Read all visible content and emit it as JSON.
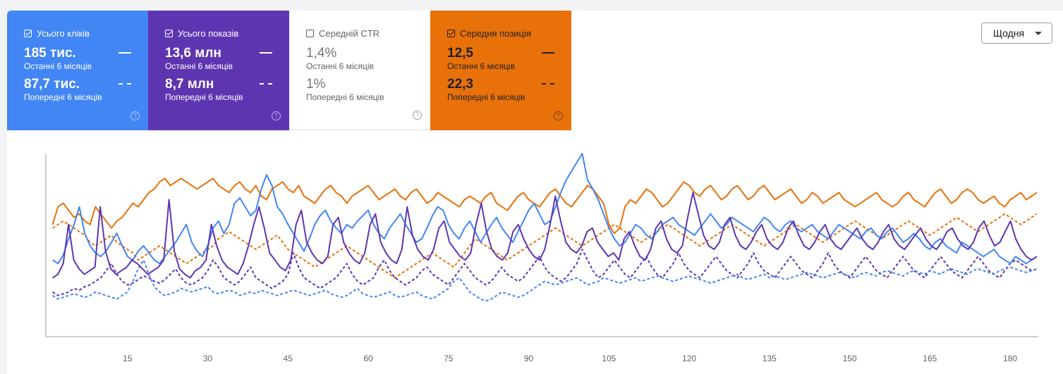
{
  "tiles": [
    {
      "label": "Усього кліків",
      "checked": true,
      "current_value": "185 тис.",
      "current_label": "Останні 6 місяців",
      "previous_value": "87,7 тис.",
      "previous_label": "Попередні 6 місяців",
      "color": "#4285f4"
    },
    {
      "label": "Усього показів",
      "checked": true,
      "current_value": "13,6 млн",
      "current_label": "Останні 6 місяців",
      "previous_value": "8,7 млн",
      "previous_label": "Попередні 6 місяців",
      "color": "#5e35b1"
    },
    {
      "label": "Середній CTR",
      "checked": false,
      "current_value": "1,4%",
      "current_label": "Останні 6 місяців",
      "previous_value": "1%",
      "previous_label": "Попередні 6 місяців",
      "color": "#ffffff"
    },
    {
      "label": "Середня позиція",
      "checked": true,
      "current_value": "12,5",
      "current_label": "Останні 6 місяців",
      "previous_value": "22,3",
      "previous_label": "Попередні 6 місяців",
      "color": "#e8710a"
    }
  ],
  "controls": {
    "granularity": "Щодня"
  },
  "chart_data": {
    "type": "line",
    "x_ticks": [
      15,
      30,
      45,
      60,
      75,
      90,
      105,
      120,
      135,
      150,
      165,
      180
    ],
    "xlim": [
      0,
      185
    ],
    "ylim": [
      0,
      100
    ],
    "y_axis_labels_shown": false,
    "grid": false,
    "series": [
      {
        "metric": "Усього кліків",
        "period": "Останні 6 місяців",
        "style": "solid",
        "color": "#4285f4",
        "values": [
          40,
          38,
          43,
          52,
          60,
          70,
          55,
          48,
          44,
          42,
          45,
          50,
          55,
          48,
          42,
          40,
          45,
          48,
          44,
          40,
          38,
          42,
          46,
          50,
          55,
          60,
          50,
          45,
          42,
          48,
          58,
          62,
          55,
          60,
          72,
          75,
          70,
          65,
          68,
          80,
          88,
          82,
          70,
          66,
          60,
          55,
          50,
          45,
          52,
          60,
          65,
          68,
          62,
          58,
          55,
          60,
          58,
          62,
          65,
          68,
          60,
          55,
          52,
          58,
          62,
          66,
          60,
          55,
          50,
          52,
          58,
          65,
          70,
          68,
          60,
          55,
          52,
          58,
          62,
          56,
          50,
          55,
          60,
          64,
          58,
          54,
          50,
          56,
          62,
          68,
          72,
          66,
          60,
          62,
          70,
          78,
          85,
          90,
          95,
          100,
          85,
          80,
          74,
          66,
          58,
          52,
          48,
          50,
          55,
          60,
          58,
          54,
          52,
          56,
          60,
          62,
          64,
          60,
          58,
          56,
          54,
          58,
          62,
          66,
          62,
          58,
          60,
          64,
          62,
          60,
          58,
          56,
          60,
          64,
          62,
          58,
          56,
          60,
          62,
          58,
          56,
          58,
          60,
          56,
          54,
          52,
          56,
          60,
          58,
          56,
          54,
          52,
          56,
          58,
          54,
          52,
          56,
          58,
          54,
          50,
          52,
          55,
          52,
          48,
          46,
          50,
          52,
          48,
          46,
          44,
          50,
          48,
          46,
          44,
          42,
          44,
          46,
          42,
          40,
          38,
          42,
          40,
          38,
          40,
          42
        ]
      },
      {
        "metric": "Усього кліків",
        "period": "Попередні 6 місяців",
        "style": "dashed",
        "color": "#4285f4",
        "values": [
          20,
          18,
          19,
          20,
          21,
          20,
          19,
          20,
          22,
          21,
          20,
          19,
          18,
          20,
          22,
          28,
          35,
          40,
          32,
          25,
          22,
          20,
          21,
          22,
          24,
          23,
          22,
          23,
          24,
          25,
          22,
          21,
          22,
          23,
          22,
          20,
          21,
          22,
          21,
          23,
          22,
          21,
          20,
          21,
          22,
          23,
          22,
          21,
          20,
          21,
          22,
          23,
          21,
          20,
          19,
          20,
          22,
          24,
          21,
          20,
          19,
          20,
          21,
          22,
          20,
          19,
          20,
          21,
          22,
          20,
          19,
          18,
          20,
          22,
          24,
          28,
          30,
          26,
          22,
          20,
          18,
          17,
          18,
          20,
          22,
          21,
          20,
          19,
          20,
          22,
          24,
          26,
          28,
          27,
          26,
          27,
          28,
          29,
          30,
          28,
          26,
          27,
          28,
          30,
          29,
          28,
          27,
          28,
          29,
          30,
          28,
          29,
          30,
          31,
          30,
          29,
          28,
          29,
          30,
          31,
          30,
          29,
          28,
          27,
          28,
          29,
          30,
          31,
          32,
          30,
          29,
          30,
          31,
          32,
          30,
          31,
          30,
          29,
          30,
          31,
          32,
          33,
          32,
          31,
          30,
          31,
          32,
          33,
          32,
          31,
          30,
          32,
          33,
          32,
          31,
          33,
          34,
          33,
          32,
          31,
          33,
          34,
          33,
          32,
          34,
          33,
          32,
          34,
          35,
          34,
          33,
          32,
          34,
          35,
          34,
          33,
          32,
          34,
          35,
          36,
          35,
          34,
          33,
          34,
          35
        ]
      },
      {
        "metric": "Усього показів",
        "period": "Останні 6 місяців",
        "style": "solid",
        "color": "#5e35b1",
        "values": [
          30,
          32,
          38,
          60,
          40,
          35,
          32,
          34,
          36,
          70,
          45,
          35,
          32,
          34,
          36,
          40,
          38,
          35,
          32,
          34,
          36,
          40,
          74,
          45,
          35,
          32,
          30,
          34,
          36,
          40,
          60,
          48,
          40,
          36,
          34,
          32,
          38,
          48,
          60,
          70,
          58,
          44,
          40,
          36,
          34,
          40,
          60,
          68,
          50,
          44,
          40,
          38,
          42,
          60,
          64,
          50,
          44,
          40,
          38,
          44,
          60,
          66,
          50,
          44,
          40,
          38,
          46,
          70,
          54,
          46,
          42,
          40,
          46,
          58,
          62,
          50,
          46,
          42,
          40,
          44,
          60,
          72,
          56,
          46,
          42,
          40,
          44,
          56,
          60,
          52,
          46,
          42,
          40,
          46,
          60,
          76,
          62,
          50,
          46,
          44,
          48,
          56,
          58,
          50,
          46,
          42,
          44,
          40,
          52,
          56,
          48,
          42,
          40,
          46,
          58,
          62,
          52,
          46,
          44,
          48,
          64,
          78,
          66,
          54,
          48,
          46,
          50,
          60,
          64,
          54,
          48,
          46,
          50,
          56,
          60,
          52,
          48,
          46,
          50,
          58,
          62,
          54,
          48,
          46,
          50,
          56,
          60,
          52,
          48,
          46,
          50,
          54,
          58,
          52,
          48,
          46,
          50,
          56,
          60,
          52,
          48,
          46,
          50,
          54,
          58,
          52,
          48,
          46,
          50,
          56,
          58,
          52,
          48,
          46,
          50,
          58,
          62,
          54,
          48,
          50,
          56,
          62,
          52,
          46,
          42,
          40,
          42
        ]
      },
      {
        "metric": "Усього показів",
        "period": "Попередні 6 місяців",
        "style": "dashed",
        "color": "#5e35b1",
        "values": [
          22,
          20,
          21,
          22,
          24,
          23,
          25,
          26,
          28,
          30,
          34,
          38,
          32,
          28,
          26,
          27,
          29,
          31,
          30,
          28,
          27,
          29,
          32,
          35,
          30,
          27,
          26,
          28,
          30,
          34,
          40,
          36,
          30,
          28,
          26,
          28,
          32,
          36,
          30,
          28,
          26,
          24,
          26,
          28,
          32,
          44,
          36,
          30,
          28,
          26,
          24,
          26,
          28,
          30,
          34,
          38,
          32,
          28,
          26,
          28,
          30,
          36,
          40,
          34,
          30,
          28,
          26,
          28,
          30,
          34,
          36,
          32,
          30,
          28,
          26,
          30,
          34,
          38,
          34,
          30,
          28,
          26,
          28,
          32,
          36,
          32,
          30,
          28,
          30,
          34,
          38,
          42,
          36,
          32,
          30,
          28,
          30,
          34,
          38,
          46,
          40,
          34,
          30,
          32,
          36,
          40,
          36,
          32,
          30,
          34,
          38,
          42,
          36,
          32,
          30,
          34,
          38,
          44,
          38,
          34,
          32,
          30,
          34,
          38,
          42,
          38,
          34,
          32,
          30,
          34,
          38,
          44,
          38,
          34,
          32,
          30,
          34,
          38,
          42,
          38,
          34,
          32,
          30,
          34,
          38,
          44,
          38,
          34,
          32,
          30,
          34,
          38,
          42,
          38,
          34,
          32,
          30,
          34,
          38,
          42,
          38,
          34,
          32,
          30,
          34,
          38,
          42,
          38,
          34,
          32,
          30,
          34,
          38,
          42,
          38,
          34,
          32,
          30,
          34,
          38,
          40,
          38,
          36,
          34,
          35
        ]
      },
      {
        "metric": "Середня позиція",
        "period": "Останні 6 місяців",
        "style": "solid",
        "color": "#e8710a",
        "values": [
          60,
          70,
          72,
          68,
          64,
          66,
          62,
          60,
          70,
          66,
          62,
          58,
          62,
          64,
          68,
          72,
          70,
          74,
          78,
          80,
          84,
          86,
          82,
          84,
          86,
          84,
          82,
          80,
          82,
          84,
          86,
          82,
          80,
          78,
          82,
          84,
          80,
          78,
          82,
          76,
          74,
          80,
          82,
          84,
          80,
          78,
          82,
          76,
          74,
          72,
          76,
          80,
          82,
          78,
          76,
          72,
          76,
          78,
          80,
          82,
          78,
          74,
          76,
          78,
          80,
          76,
          74,
          78,
          80,
          76,
          72,
          74,
          78,
          76,
          74,
          72,
          70,
          74,
          76,
          74,
          72,
          76,
          78,
          72,
          70,
          68,
          72,
          76,
          78,
          74,
          72,
          70,
          74,
          78,
          80,
          76,
          72,
          70,
          74,
          78,
          82,
          80,
          76,
          72,
          60,
          55,
          58,
          70,
          74,
          72,
          76,
          80,
          78,
          74,
          70,
          72,
          76,
          80,
          84,
          82,
          78,
          76,
          80,
          82,
          78,
          74,
          76,
          80,
          82,
          78,
          74,
          76,
          80,
          82,
          78,
          74,
          76,
          78,
          80,
          76,
          72,
          74,
          78,
          76,
          72,
          74,
          76,
          78,
          74,
          72,
          70,
          72,
          74,
          76,
          78,
          74,
          72,
          70,
          72,
          76,
          78,
          74,
          72,
          70,
          74,
          78,
          80,
          76,
          72,
          74,
          78,
          80,
          78,
          74,
          72,
          74,
          76,
          72,
          70,
          74,
          76,
          78,
          74,
          76,
          78
        ]
      },
      {
        "metric": "Середня позиція",
        "period": "Попередні 6 місяців",
        "style": "dashed",
        "color": "#e8710a",
        "values": [
          58,
          60,
          62,
          60,
          58,
          56,
          54,
          50,
          48,
          50,
          52,
          54,
          50,
          48,
          46,
          44,
          40,
          42,
          44,
          46,
          48,
          46,
          44,
          42,
          40,
          38,
          40,
          42,
          44,
          46,
          48,
          52,
          54,
          56,
          54,
          52,
          50,
          48,
          46,
          48,
          50,
          52,
          54,
          50,
          46,
          44,
          42,
          40,
          38,
          36,
          38,
          40,
          42,
          44,
          46,
          48,
          46,
          44,
          42,
          40,
          38,
          36,
          34,
          32,
          30,
          32,
          34,
          36,
          38,
          40,
          42,
          44,
          42,
          40,
          38,
          36,
          40,
          44,
          48,
          52,
          50,
          48,
          46,
          44,
          42,
          40,
          42,
          44,
          46,
          48,
          50,
          52,
          54,
          56,
          58,
          56,
          54,
          52,
          50,
          48,
          50,
          52,
          54,
          56,
          58,
          60,
          58,
          56,
          54,
          52,
          50,
          52,
          54,
          56,
          58,
          60,
          58,
          56,
          54,
          52,
          50,
          48,
          50,
          52,
          54,
          56,
          58,
          60,
          58,
          56,
          54,
          52,
          50,
          48,
          50,
          52,
          54,
          56,
          58,
          60,
          58,
          56,
          54,
          52,
          50,
          52,
          54,
          56,
          58,
          60,
          62,
          60,
          58,
          56,
          54,
          52,
          54,
          56,
          58,
          60,
          62,
          60,
          58,
          56,
          54,
          56,
          58,
          60,
          62,
          64,
          62,
          60,
          58,
          56,
          58,
          60,
          62,
          64,
          66,
          64,
          62,
          60,
          62,
          64,
          66
        ]
      }
    ]
  }
}
